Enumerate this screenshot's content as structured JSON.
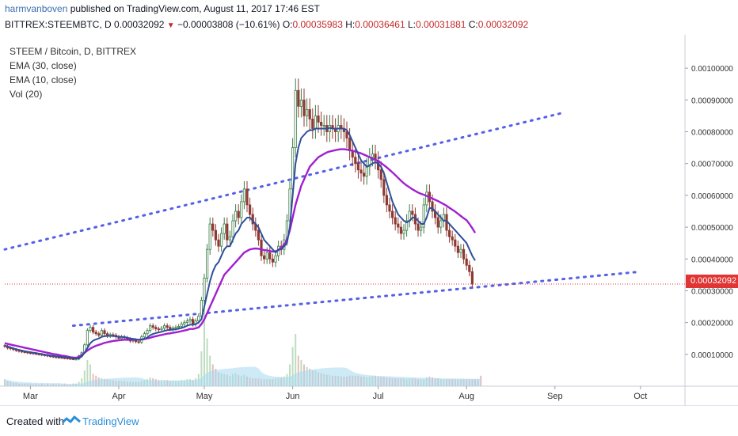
{
  "header": {
    "author": "harmvanboven",
    "published_text": "published on TradingView.com, August 11, 2017 17:46 EST"
  },
  "quote": {
    "symbol": "BITTREX:STEEMBTC, D",
    "last": "0.00032092",
    "change": "−0.00003808 (−10.61%)",
    "o_label": "O:",
    "o": "0.00035983",
    "h_label": "H:",
    "h": "0.00036461",
    "l_label": "L:",
    "l": "0.00031881",
    "c_label": "C:",
    "c": "0.00032092"
  },
  "legend": {
    "title": "STEEM / Bitcoin, D, BITTREX",
    "ema30": "EMA (30, close)",
    "ema10": "EMA (10, close)",
    "vol": "Vol (20)"
  },
  "colors": {
    "up": "#3c7d47",
    "down": "#8e3a33",
    "ema30": "#a020d0",
    "ema10": "#2e4f9a",
    "trend": "#5560e6",
    "price_line": "#e03535",
    "vol_fill": "#a8d8f0"
  },
  "footer": {
    "created_with": "Created with",
    "brand": "TradingView"
  },
  "chart_data": {
    "type": "candlestick",
    "x_axis": {
      "tick_labels": [
        "Mar",
        "Apr",
        "May",
        "Jun",
        "Jul",
        "Aug",
        "Sep",
        "Oct"
      ]
    },
    "y_axis": {
      "range": [
        0.0,
        0.00107
      ],
      "tick_labels": [
        "0.00010000",
        "0.00020000",
        "0.00030000",
        "0.00040000",
        "0.00050000",
        "0.00060000",
        "0.00070000",
        "0.00080000",
        "0.00090000",
        "0.00100000"
      ],
      "ticks": [
        0.0001,
        0.0002,
        0.0003,
        0.0004,
        0.0005,
        0.0006,
        0.0007,
        0.0008,
        0.0009,
        0.001
      ]
    },
    "last_price": 0.00032092,
    "last_price_label": "0.00032092",
    "start_date": "2017-02-20",
    "closes": [
      0.000125,
      0.00012,
      0.000118,
      0.000115,
      0.000112,
      0.00011,
      0.000108,
      0.000107,
      0.000105,
      0.000104,
      0.000103,
      0.000101,
      0.0001,
      9.8e-05,
      9.7e-05,
      9.5e-05,
      9.4e-05,
      9.2e-05,
      9.1e-05,
      9e-05,
      8.9e-05,
      8.8e-05,
      8.7e-05,
      8.6e-05,
      8.5e-05,
      8.5e-05,
      9.5e-05,
      0.000105,
      0.00013,
      0.000175,
      0.000185,
      0.00017,
      0.000165,
      0.00016,
      0.000175,
      0.000165,
      0.000158,
      0.000162,
      0.00016,
      0.000155,
      0.00015,
      0.000155,
      0.000152,
      0.000148,
      0.000142,
      0.000145,
      0.00014,
      0.000138,
      0.000155,
      0.000165,
      0.000175,
      0.00019,
      0.000185,
      0.00018,
      0.000178,
      0.000182,
      0.00019,
      0.000185,
      0.00018,
      0.000182,
      0.000185,
      0.000188,
      0.000195,
      0.0002,
      0.000205,
      0.00021,
      0.000195,
      0.000205,
      0.00022,
      0.00027,
      0.00034,
      0.00043,
      0.00051,
      0.00049,
      0.00046,
      0.00044,
      0.00048,
      0.00051,
      0.00046,
      0.00047,
      0.00052,
      0.00055,
      0.00053,
      0.00058,
      0.00062,
      0.00057,
      0.00054,
      0.00051,
      0.00049,
      0.00046,
      0.00041,
      0.0004,
      0.00042,
      0.0004,
      0.00039,
      0.00041,
      0.00044,
      0.00043,
      0.00046,
      0.00052,
      0.00062,
      0.00075,
      0.00093,
      0.00088,
      0.0009,
      0.00085,
      0.00087,
      0.00084,
      0.00081,
      0.00085,
      0.00083,
      0.00082,
      0.00082,
      0.0008,
      0.00082,
      0.00081,
      0.0008,
      0.00082,
      0.00081,
      0.0008,
      0.00078,
      0.00074,
      0.00072,
      0.0007,
      0.00068,
      0.00067,
      0.00066,
      0.00069,
      0.00072,
      0.00073,
      0.00071,
      0.00068,
      0.00065,
      0.0006,
      0.00057,
      0.00055,
      0.00053,
      0.00051,
      0.0005,
      0.00048,
      0.00049,
      0.00052,
      0.00055,
      0.00054,
      0.00051,
      0.00049,
      0.0005,
      0.00057,
      0.00061,
      0.00058,
      0.00055,
      0.00053,
      0.0005,
      0.00052,
      0.00054,
      0.00049,
      0.00047,
      0.00046,
      0.00044,
      0.00042,
      0.00043,
      0.0004,
      0.00038,
      0.00036,
      0.000321
    ],
    "ema30": [
      0.000135,
      0.000133,
      0.000131,
      0.000129,
      0.000127,
      0.000125,
      0.000123,
      0.000121,
      0.000119,
      0.000117,
      0.000115,
      0.000113,
      0.000111,
      0.000109,
      0.000107,
      0.000105,
      0.000103,
      0.000101,
      0.0001,
      9.8e-05,
      9.6e-05,
      9.5e-05,
      9.3e-05,
      9.1e-05,
      9e-05,
      8.9e-05,
      9.2e-05,
      9.8e-05,
      0.000105,
      0.000112,
      0.000118,
      0.000123,
      0.000127,
      0.00013,
      0.000133,
      0.000136,
      0.000138,
      0.00014,
      0.000142,
      0.000143,
      0.000144,
      0.000145,
      0.000146,
      0.000146,
      0.000146,
      0.000146,
      0.000146,
      0.000146,
      0.000147,
      0.000148,
      0.00015,
      0.000152,
      0.000155,
      0.000157,
      0.000159,
      0.000161,
      0.000163,
      0.000165,
      0.000166,
      0.000168,
      0.000169,
      0.000171,
      0.000173,
      0.000175,
      0.000177,
      0.00018,
      0.00018,
      0.000182,
      0.000185,
      0.000195,
      0.00021,
      0.00023,
      0.00025,
      0.00027,
      0.00029,
      0.00031,
      0.00033,
      0.00035,
      0.00036,
      0.00037,
      0.00038,
      0.00039,
      0.0004,
      0.00041,
      0.00042,
      0.000425,
      0.00043,
      0.000432,
      0.000433,
      0.000432,
      0.00043,
      0.000428,
      0.000427,
      0.000425,
      0.000423,
      0.000424,
      0.000428,
      0.000435,
      0.000445,
      0.00046,
      0.00049,
      0.00053,
      0.00057,
      0.0006,
      0.00063,
      0.00065,
      0.00067,
      0.00069,
      0.0007,
      0.00071,
      0.00072,
      0.000725,
      0.00073,
      0.000735,
      0.000738,
      0.00074,
      0.000742,
      0.000744,
      0.000745,
      0.000745,
      0.000744,
      0.000742,
      0.00074,
      0.000738,
      0.000735,
      0.000732,
      0.000728,
      0.000724,
      0.00072,
      0.000716,
      0.000712,
      0.000708,
      0.000702,
      0.000695,
      0.000688,
      0.00068,
      0.000672,
      0.000664,
      0.000655,
      0.000646,
      0.000638,
      0.000631,
      0.000625,
      0.000619,
      0.000614,
      0.000609,
      0.000605,
      0.000602,
      0.000598,
      0.000594,
      0.00059,
      0.000586,
      0.000582,
      0.000577,
      0.000572,
      0.000567,
      0.000561,
      0.000555,
      0.000549,
      0.000542,
      0.000535,
      0.000528,
      0.000522,
      0.00051,
      0.000497,
      0.000482
    ],
    "ema10": [
      0.000128,
      0.000125,
      0.000122,
      0.000119,
      0.000116,
      0.000114,
      0.000112,
      0.00011,
      0.000108,
      0.000107,
      0.000105,
      0.000104,
      0.000102,
      0.000101,
      9.9e-05,
      9.8e-05,
      9.6e-05,
      9.5e-05,
      9.4e-05,
      9.3e-05,
      9.2e-05,
      9.1e-05,
      9e-05,
      8.9e-05,
      8.8e-05,
      8.7e-05,
      8.8e-05,
      9.3e-05,
      0.000105,
      0.00012,
      0.000135,
      0.000143,
      0.000147,
      0.00015,
      0.000155,
      0.000157,
      0.000158,
      0.000158,
      0.000158,
      0.000157,
      0.000155,
      0.000155,
      0.000154,
      0.000152,
      0.00015,
      0.000149,
      0.000147,
      0.000145,
      0.000146,
      0.000149,
      0.000153,
      0.00016,
      0.000164,
      0.000167,
      0.000169,
      0.000171,
      0.000174,
      0.000176,
      0.000177,
      0.000178,
      0.000179,
      0.000181,
      0.000183,
      0.000186,
      0.00019,
      0.000193,
      0.000193,
      0.000195,
      0.0002,
      0.00021,
      0.00025,
      0.00029,
      0.00033,
      0.00036,
      0.00038,
      0.00039,
      0.00041,
      0.00043,
      0.00044,
      0.00044,
      0.00046,
      0.00048,
      0.00049,
      0.00051,
      0.00052,
      0.00053,
      0.00053,
      0.00052,
      0.00051,
      0.0005,
      0.00048,
      0.00046,
      0.00045,
      0.00044,
      0.00043,
      0.00042,
      0.00043,
      0.00043,
      0.00044,
      0.00045,
      0.0005,
      0.0006,
      0.0007,
      0.00075,
      0.00078,
      0.00079,
      0.0008,
      0.000805,
      0.000805,
      0.00081,
      0.00081,
      0.00081,
      0.00081,
      0.00081,
      0.000812,
      0.00081,
      0.00081,
      0.00081,
      0.00081,
      0.00081,
      0.000805,
      0.00079,
      0.00077,
      0.00075,
      0.00073,
      0.00071,
      0.0007,
      0.00069,
      0.000695,
      0.0007,
      0.000705,
      0.0007,
      0.00069,
      0.00067,
      0.00064,
      0.00061,
      0.00058,
      0.00056,
      0.00054,
      0.00053,
      0.00052,
      0.000515,
      0.00052,
      0.00053,
      0.00053,
      0.00052,
      0.00051,
      0.00051,
      0.00053,
      0.00056,
      0.00056,
      0.00055,
      0.00054,
      0.00053,
      0.00052,
      0.00052,
      0.00051,
      0.0005,
      0.00049,
      0.00048,
      0.00047,
      0.00046,
      0.00045,
      0.00043,
      0.00041,
      0.000395
    ],
    "volume_pct": [
      8,
      6,
      5,
      4,
      4,
      3,
      3,
      3,
      3,
      3,
      2,
      3,
      2,
      3,
      2,
      3,
      2,
      3,
      2,
      3,
      2,
      3,
      2,
      2,
      3,
      3,
      5,
      9,
      18,
      30,
      25,
      14,
      12,
      10,
      9,
      8,
      8,
      7,
      7,
      6,
      6,
      6,
      6,
      5,
      5,
      5,
      5,
      5,
      6,
      7,
      8,
      10,
      9,
      8,
      7,
      7,
      7,
      7,
      6,
      6,
      6,
      6,
      7,
      7,
      8,
      8,
      7,
      9,
      14,
      40,
      90,
      55,
      35,
      25,
      20,
      16,
      15,
      14,
      13,
      12,
      14,
      15,
      13,
      12,
      13,
      11,
      10,
      9,
      9,
      9,
      8,
      8,
      8,
      8,
      8,
      9,
      10,
      10,
      11,
      14,
      25,
      45,
      60,
      35,
      30,
      25,
      22,
      20,
      18,
      18,
      16,
      15,
      14,
      13,
      13,
      12,
      12,
      12,
      11,
      11,
      11,
      12,
      12,
      12,
      12,
      11,
      11,
      10,
      11,
      12,
      12,
      11,
      11,
      11,
      10,
      10,
      9,
      9,
      9,
      9,
      9,
      8,
      9,
      9,
      9,
      8,
      8,
      8,
      10,
      11,
      10,
      9,
      9,
      8,
      8,
      8,
      8,
      8,
      8,
      8,
      8,
      8,
      8,
      8,
      8,
      8,
      8,
      12
    ],
    "trendlines": [
      {
        "from": [
          "2017-02-20",
          0.00043
        ],
        "to": [
          "2017-09-04",
          0.00086
        ]
      },
      {
        "from": [
          "2017-03-16",
          0.00019
        ],
        "to": [
          "2017-10-01",
          0.00036
        ]
      }
    ]
  }
}
